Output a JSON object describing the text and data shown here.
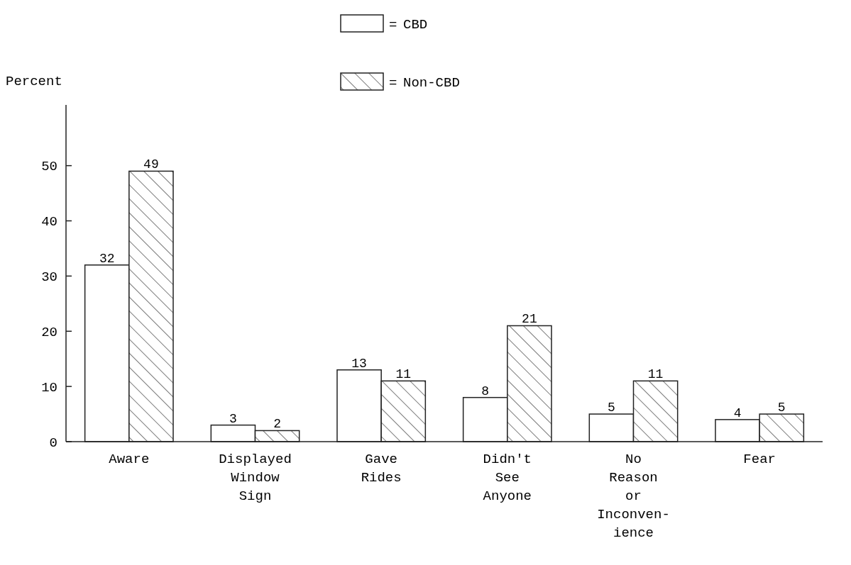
{
  "chart_data": {
    "type": "bar",
    "ylabel": "Percent",
    "categories": [
      "Aware",
      "Displayed\nWindow\nSign",
      "Gave\nRides",
      "Didn't\nSee\nAnyone",
      "No\nReason\nor\nInconven-\nience",
      "Fear"
    ],
    "series": [
      {
        "name": "CBD",
        "color": "#ffffff",
        "values": [
          32,
          3,
          13,
          8,
          5,
          4
        ]
      },
      {
        "name": "Non-CBD",
        "color": "#222222",
        "values": [
          49,
          2,
          11,
          21,
          11,
          5
        ]
      }
    ],
    "ylim": [
      0,
      61
    ],
    "yticks": [
      0,
      10,
      20,
      30,
      40,
      50
    ],
    "data_labels": true,
    "legend": "top",
    "annotations": [
      "=",
      "="
    ],
    "grid": false
  }
}
